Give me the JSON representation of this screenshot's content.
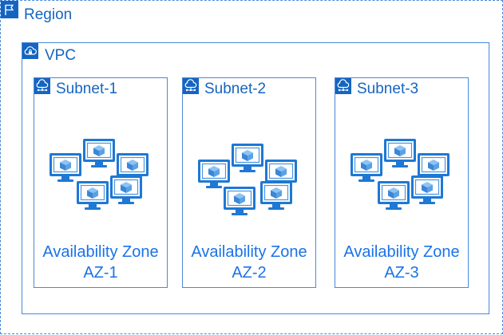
{
  "region": {
    "title": "Region",
    "icon": "flag-icon"
  },
  "vpc": {
    "title": "VPC",
    "icon": "cloud-lock-icon"
  },
  "subnets": [
    {
      "title": "Subnet-1",
      "icon": "cloud-network-icon",
      "zone_title": "Availability Zone",
      "zone_id": "AZ-1"
    },
    {
      "title": "Subnet-2",
      "icon": "cloud-network-icon",
      "zone_title": "Availability Zone",
      "zone_id": "AZ-2"
    },
    {
      "title": "Subnet-3",
      "icon": "cloud-network-icon",
      "zone_title": "Availability Zone",
      "zone_id": "AZ-3"
    }
  ],
  "colors": {
    "border": "#4a89d9",
    "label": "#1565c0",
    "monitor": "#1e78d4",
    "cube": "#5aa2e6"
  }
}
